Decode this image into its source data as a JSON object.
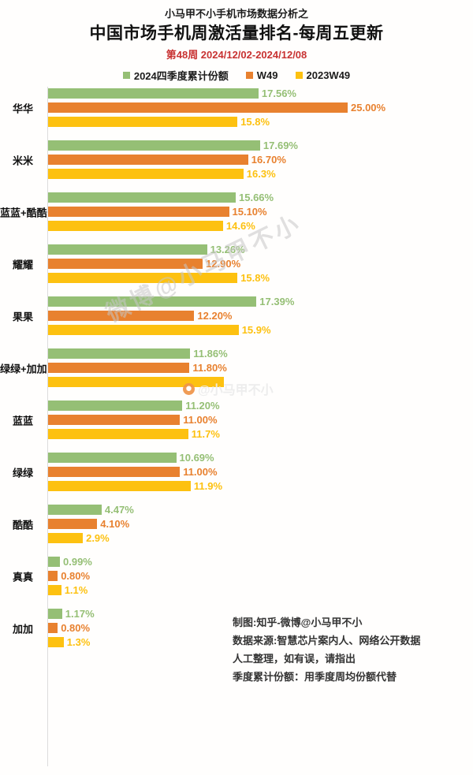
{
  "header": {
    "subtitle": "小马甲不小手机市场数据分析之",
    "title": "中国市场手机周激活量排名-每周五更新",
    "period": "第48周 2024/12/02-2024/12/08",
    "period_color": "#c83232"
  },
  "legend": [
    {
      "label": "2024四季度累计份额",
      "color": "#95bf75"
    },
    {
      "label": "W49",
      "color": "#e8812f"
    },
    {
      "label": "2023W49",
      "color": "#fdc110"
    }
  ],
  "chart_data": {
    "type": "bar",
    "orientation": "horizontal",
    "title": "中国市场手机周激活量排名-每周五更新",
    "xlim": [
      0,
      25
    ],
    "grid": false,
    "legend_position": "top",
    "axis_color": "#dcdcdc",
    "categories": [
      "华华",
      "米米",
      "蓝蓝+酷酷",
      "耀耀",
      "果果",
      "绿绿+加加",
      "蓝蓝",
      "绿绿",
      "酷酷",
      "真真",
      "加加"
    ],
    "series": [
      {
        "key": "2024q4-share",
        "name": "2024四季度累计份额",
        "color": "#95bf75",
        "values": [
          17.56,
          17.69,
          15.66,
          13.26,
          17.39,
          11.86,
          11.2,
          10.69,
          4.47,
          0.99,
          1.17
        ],
        "labels": [
          "17.56%",
          "17.69%",
          "15.66%",
          "13.26%",
          "17.39%",
          "11.86%",
          "11.20%",
          "10.69%",
          "4.47%",
          "0.99%",
          "1.17%"
        ]
      },
      {
        "key": "w49",
        "name": "W49",
        "color": "#e8812f",
        "values": [
          25.0,
          16.7,
          15.1,
          12.9,
          12.2,
          11.8,
          11.0,
          11.0,
          4.1,
          0.8,
          0.8
        ],
        "labels": [
          "25.00%",
          "16.70%",
          "15.10%",
          "12.90%",
          "12.20%",
          "11.80%",
          "11.00%",
          "11.00%",
          "4.10%",
          "0.80%",
          "0.80%"
        ]
      },
      {
        "key": "2023w49",
        "name": "2023W49",
        "color": "#fdc110",
        "values": [
          15.8,
          16.3,
          14.6,
          15.8,
          15.9,
          14.7,
          11.7,
          11.9,
          2.9,
          1.1,
          1.3
        ],
        "labels": [
          "15.8%",
          "16.3%",
          "14.6%",
          "15.8%",
          "15.9%",
          "",
          "11.7%",
          "11.9%",
          "2.9%",
          "1.1%",
          "1.3%"
        ],
        "notes": "label of 绿绿+加加 bar hidden behind watermark"
      }
    ]
  },
  "watermarks": {
    "diagonal": "微博@小马甲不小",
    "inline": "@小马甲不小"
  },
  "footer": {
    "lines": [
      "制图:知乎-微博@小马甲不小",
      "数据来源:智慧芯片案内人、网络公开数据",
      "人工整理，如有误，请指出",
      "季度累计份额：用季度周均份额代替"
    ]
  }
}
